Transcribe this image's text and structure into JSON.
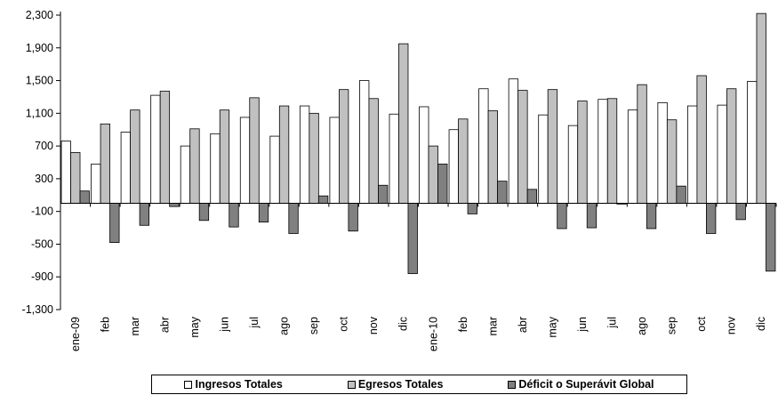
{
  "chart_data": {
    "type": "bar",
    "categories": [
      "ene-09",
      "feb",
      "mar",
      "abr",
      "may",
      "jun",
      "jul",
      "ago",
      "sep",
      "oct",
      "nov",
      "dic",
      "ene-10",
      "feb",
      "mar",
      "abr",
      "may",
      "jun",
      "jul",
      "ago",
      "sep",
      "oct",
      "nov",
      "dic"
    ],
    "series": [
      {
        "name": "Ingresos Totales",
        "color": "#ffffff",
        "values": [
          760,
          480,
          870,
          1320,
          700,
          850,
          1050,
          820,
          1190,
          1050,
          1500,
          1090,
          1180,
          900,
          1400,
          1520,
          1080,
          950,
          1270,
          1140,
          1230,
          1190,
          1200,
          1490
        ]
      },
      {
        "name": "Egresos Totales",
        "color": "#c0c0c0",
        "values": [
          620,
          970,
          1140,
          1370,
          910,
          1140,
          1290,
          1190,
          1100,
          1390,
          1280,
          1950,
          700,
          1030,
          1130,
          1380,
          1390,
          1250,
          1280,
          1450,
          1020,
          1560,
          1400,
          2320
        ]
      },
      {
        "name": "Déficit o Superávit Global",
        "color": "#808080",
        "values": [
          150,
          -480,
          -270,
          -40,
          -210,
          -290,
          -230,
          -370,
          90,
          -340,
          220,
          -860,
          480,
          -130,
          270,
          170,
          -310,
          -300,
          -10,
          -310,
          210,
          -370,
          -200,
          -830
        ]
      }
    ],
    "ylim": [
      -1300,
      2300
    ],
    "yticks": [
      -1300,
      -900,
      -500,
      -100,
      300,
      700,
      1100,
      1500,
      1900,
      2300
    ],
    "ytick_labels": [
      "-1,300",
      "-900",
      "-500",
      "-100",
      "300",
      "700",
      "1,100",
      "1,500",
      "1,900",
      "2,300"
    ],
    "title": "",
    "xlabel": "",
    "ylabel": "",
    "grid": false,
    "legend_position": "bottom"
  }
}
